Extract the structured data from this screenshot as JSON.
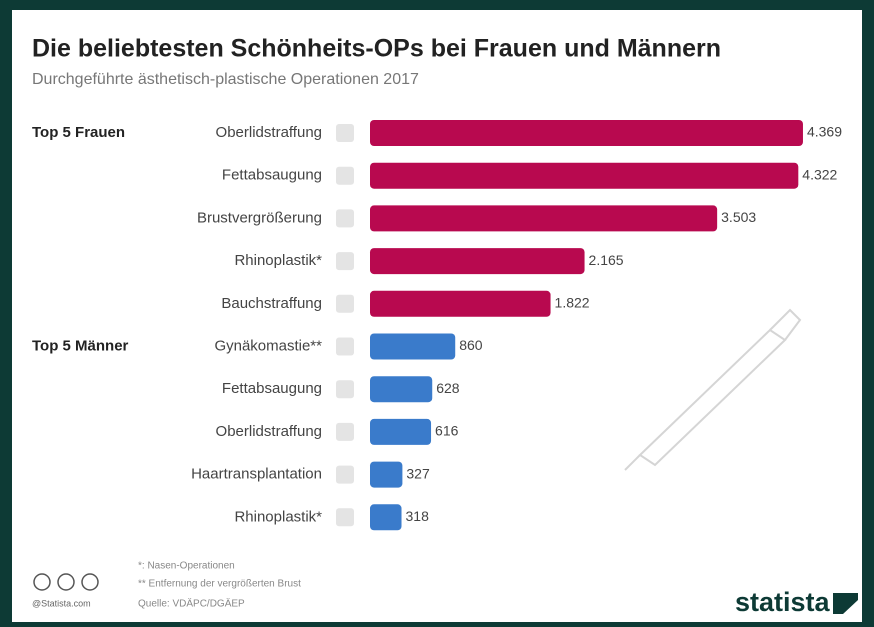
{
  "chart_data": {
    "type": "bar",
    "title": "Die beliebtesten Schönheits-OPs bei Frauen und Männern",
    "subtitle": "Durchgeführte ästhetisch-plastische Operationen 2017",
    "series": [
      {
        "name": "Top 5 Frauen",
        "color": "#b8094f",
        "categories": [
          "Oberlidstraffung",
          "Fettabsaugung",
          "Brustvergrößerung",
          "Rhinoplastik*",
          "Bauchstraffung"
        ],
        "values": [
          4369,
          4322,
          3503,
          2165,
          1822
        ],
        "value_labels": [
          "4.369",
          "4.322",
          "3.503",
          "2.165",
          "1.822"
        ]
      },
      {
        "name": "Top 5 Männer",
        "color": "#3a7bcb",
        "categories": [
          "Gynäkomastie**",
          "Fettabsaugung",
          "Oberlidstraffung",
          "Haartransplantation",
          "Rhinoplastik*"
        ],
        "values": [
          860,
          628,
          616,
          327,
          318
        ],
        "value_labels": [
          "860",
          "628",
          "616",
          "327",
          "318"
        ]
      }
    ],
    "footnotes": [
      "*: Nasen-Operationen",
      "** Entfernung der vergrößerten Brust",
      "Quelle: VDÄPC/DGÄEP"
    ],
    "credit": "@Statista.com",
    "brand": "statista"
  }
}
